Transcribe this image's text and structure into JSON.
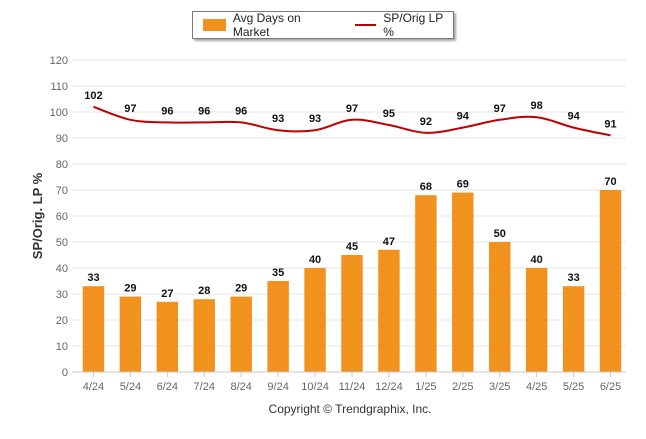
{
  "legend": {
    "bar_label": "Avg Days on Market",
    "line_label": "SP/Orig LP %"
  },
  "copyright": "Copyright © Trendgraphix, Inc.",
  "colors": {
    "bar": "#f0921d",
    "line": "#c00000",
    "grid": "#e6e6e6",
    "axis_text": "#666666",
    "label_text": "#111111"
  },
  "chart_data": {
    "type": "bar",
    "categories": [
      "4/24",
      "5/24",
      "6/24",
      "7/24",
      "8/24",
      "9/24",
      "10/24",
      "11/24",
      "12/24",
      "1/25",
      "2/25",
      "3/25",
      "4/25",
      "5/25",
      "6/25"
    ],
    "series": [
      {
        "name": "Avg Days on Market",
        "type": "bar",
        "values": [
          33,
          29,
          27,
          28,
          29,
          35,
          40,
          45,
          47,
          68,
          69,
          50,
          40,
          33,
          70
        ]
      },
      {
        "name": "SP/Orig LP %",
        "type": "line",
        "values": [
          102,
          97,
          96,
          96,
          96,
          93,
          93,
          97,
          95,
          92,
          94,
          97,
          98,
          94,
          91
        ]
      }
    ],
    "ylabel": "SP/Orig. LP %",
    "ylim": [
      0,
      120
    ],
    "yticks": [
      0,
      10,
      20,
      30,
      40,
      50,
      60,
      70,
      80,
      90,
      100,
      110,
      120
    ],
    "grid": true,
    "legend_position": "top"
  }
}
